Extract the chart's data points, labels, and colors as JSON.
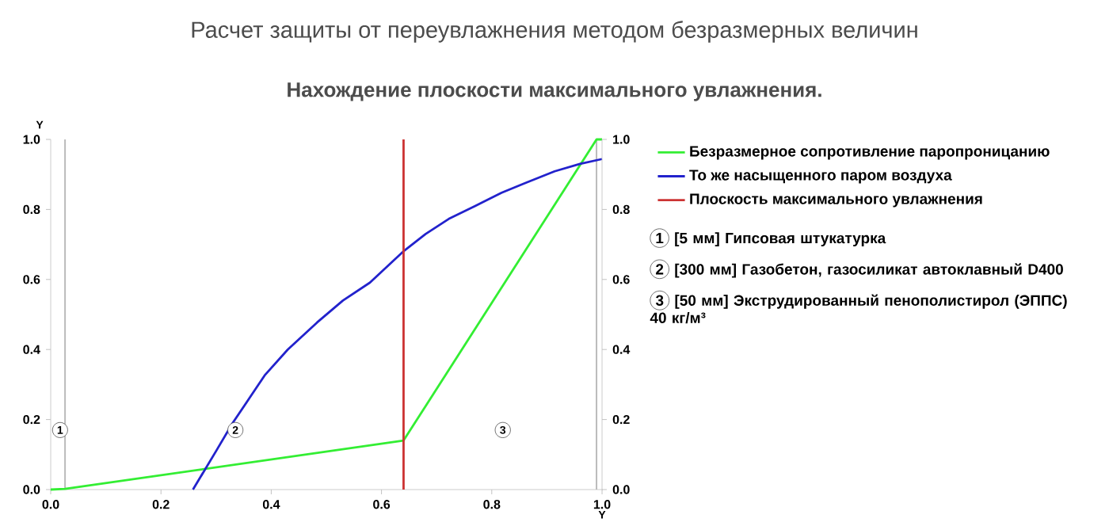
{
  "chart_data": {
    "type": "line",
    "title": "Расчет защиты от переувлажнения методом безразмерных величин",
    "subtitle": "Нахождение плоскости максимального увлажнения.",
    "xlabel": "Y",
    "ylabel": "Y",
    "xlim": [
      0,
      1
    ],
    "ylim": [
      0,
      1
    ],
    "y2lim": [
      0,
      1
    ],
    "xticks": [
      {
        "value": 0,
        "label": "0.0"
      },
      {
        "value": 0.2,
        "label": "0.2"
      },
      {
        "value": 0.4,
        "label": "0.4"
      },
      {
        "value": 0.6,
        "label": "0.6"
      },
      {
        "value": 0.8,
        "label": "0.8"
      },
      {
        "value": 1,
        "label": "1.0"
      }
    ],
    "yticks": [
      {
        "value": 0,
        "label": "0.0"
      },
      {
        "value": 0.2,
        "label": "0.2"
      },
      {
        "value": 0.4,
        "label": "0.4"
      },
      {
        "value": 0.6,
        "label": "0.6"
      },
      {
        "value": 0.8,
        "label": "0.8"
      },
      {
        "value": 1,
        "label": "1.0"
      }
    ],
    "y2ticks": [
      {
        "value": 0,
        "label": "0.0"
      },
      {
        "value": 0.2,
        "label": "0.2"
      },
      {
        "value": 0.4,
        "label": "0.4"
      },
      {
        "value": 0.6,
        "label": "0.6"
      },
      {
        "value": 0.8,
        "label": "0.8"
      },
      {
        "value": 1,
        "label": "1.0"
      }
    ],
    "series": [
      {
        "name": "Безразмерное сопротивление паропроницанию",
        "color": "#33ee33",
        "x": [
          0,
          0.026,
          0.64,
          0.99,
          1.0
        ],
        "values": [
          0,
          0.002,
          0.14,
          1.0,
          1.0
        ]
      },
      {
        "name": "То же насыщенного паром воздуха",
        "color": "#2222cc",
        "x": [
          0.258,
          0.3,
          0.33,
          0.36,
          0.388,
          0.43,
          0.483,
          0.53,
          0.579,
          0.641,
          0.68,
          0.722,
          0.77,
          0.818,
          0.86,
          0.914,
          0.96,
          1.0
        ],
        "values": [
          0,
          0.11,
          0.19,
          0.26,
          0.326,
          0.4,
          0.477,
          0.54,
          0.591,
          0.682,
          0.73,
          0.773,
          0.81,
          0.848,
          0.875,
          0.909,
          0.93,
          0.944
        ]
      },
      {
        "name": "Плоскость максимального увлажнения",
        "color": "#cc3333",
        "x": [
          0.64,
          0.64
        ],
        "values": [
          0,
          1
        ]
      }
    ],
    "ref_lines": [
      {
        "axis": "x",
        "value": 0.026,
        "color": "#bbbbbb"
      },
      {
        "axis": "x",
        "value": 0.99,
        "color": "#bbbbbb"
      }
    ],
    "annotations": [
      {
        "text": "1",
        "x": 0.017,
        "y": 0.17
      },
      {
        "text": "2",
        "x": 0.335,
        "y": 0.17
      },
      {
        "text": "3",
        "x": 0.82,
        "y": 0.17
      },
      "[5 мм] Гипсовая штукатурка",
      "[300 мм] Газобетон, газосиликат автоклавный D400",
      "[50 мм] Экструдированный пенополистирол (ЭППС) 40 кг/м³"
    ],
    "legend": "right",
    "grid": false,
    "marker": "none",
    "line_style": "solid"
  }
}
